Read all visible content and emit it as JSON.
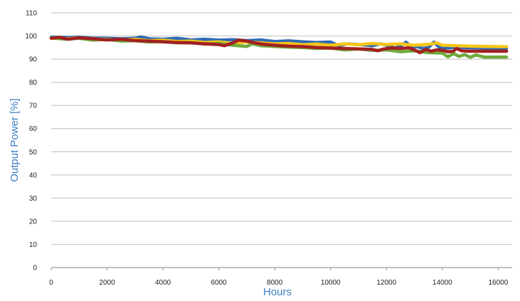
{
  "chart_data": {
    "type": "line",
    "title": "",
    "xlabel": "Hours",
    "ylabel": "Output Power [%]",
    "xlim": [
      0,
      16500
    ],
    "ylim": [
      0,
      110
    ],
    "x_ticks": [
      0,
      2000,
      4000,
      6000,
      8000,
      10000,
      12000,
      14000,
      16000
    ],
    "y_ticks": [
      0,
      10,
      20,
      30,
      40,
      50,
      60,
      70,
      80,
      90,
      100,
      110
    ],
    "grid": "horizontal",
    "legend": "none",
    "series": [
      {
        "color": "#2e6bb5",
        "points": [
          [
            0,
            99.5
          ],
          [
            500,
            99.3
          ],
          [
            1000,
            99.5
          ],
          [
            1500,
            99.0
          ],
          [
            2000,
            99.0
          ],
          [
            2500,
            98.8
          ],
          [
            3000,
            99.0
          ],
          [
            3200,
            99.6
          ],
          [
            3500,
            98.8
          ],
          [
            4000,
            98.6
          ],
          [
            4500,
            99.0
          ],
          [
            5000,
            98.3
          ],
          [
            5500,
            98.6
          ],
          [
            6000,
            98.2
          ],
          [
            6500,
            98.4
          ],
          [
            7000,
            98.0
          ],
          [
            7500,
            98.3
          ],
          [
            8000,
            97.6
          ],
          [
            8500,
            97.9
          ],
          [
            9000,
            97.5
          ],
          [
            9500,
            97.2
          ],
          [
            10000,
            97.4
          ],
          [
            10300,
            95.8
          ],
          [
            10600,
            96.6
          ],
          [
            11000,
            96.3
          ],
          [
            11500,
            95.8
          ],
          [
            11800,
            96.6
          ],
          [
            12000,
            96.0
          ],
          [
            12300,
            94.8
          ],
          [
            12500,
            95.6
          ],
          [
            12700,
            97.3
          ],
          [
            12900,
            95.2
          ],
          [
            13100,
            95.4
          ],
          [
            13300,
            94.6
          ],
          [
            13500,
            95.0
          ],
          [
            13700,
            97.3
          ],
          [
            13900,
            95.0
          ],
          [
            14200,
            94.8
          ],
          [
            14500,
            95.2
          ],
          [
            15000,
            94.9
          ],
          [
            15500,
            94.7
          ],
          [
            16000,
            94.7
          ],
          [
            16300,
            94.6
          ]
        ]
      },
      {
        "color": "#f5c518",
        "points": [
          [
            0,
            99.0
          ],
          [
            500,
            98.8
          ],
          [
            1000,
            99.2
          ],
          [
            1500,
            98.6
          ],
          [
            2000,
            98.5
          ],
          [
            2500,
            98.3
          ],
          [
            3000,
            98.5
          ],
          [
            3500,
            98.0
          ],
          [
            4000,
            98.2
          ],
          [
            4500,
            97.6
          ],
          [
            5000,
            97.8
          ],
          [
            5500,
            97.2
          ],
          [
            6000,
            97.5
          ],
          [
            6500,
            96.8
          ],
          [
            7000,
            97.4
          ],
          [
            7500,
            97.0
          ],
          [
            8000,
            96.6
          ],
          [
            8500,
            96.8
          ],
          [
            9000,
            96.2
          ],
          [
            9500,
            96.5
          ],
          [
            10000,
            96.0
          ],
          [
            10500,
            96.6
          ],
          [
            11000,
            96.2
          ],
          [
            11500,
            96.8
          ],
          [
            12000,
            96.3
          ],
          [
            12500,
            96.6
          ],
          [
            13000,
            96.0
          ],
          [
            13500,
            96.4
          ],
          [
            13800,
            97.0
          ],
          [
            14000,
            96.0
          ],
          [
            14500,
            95.8
          ],
          [
            15000,
            95.6
          ],
          [
            15500,
            95.5
          ],
          [
            16000,
            95.4
          ],
          [
            16300,
            95.4
          ]
        ]
      },
      {
        "color": "#6fab3e",
        "points": [
          [
            0,
            99.2
          ],
          [
            500,
            98.6
          ],
          [
            1000,
            99.0
          ],
          [
            1500,
            98.2
          ],
          [
            2000,
            98.5
          ],
          [
            2500,
            97.8
          ],
          [
            3000,
            98.0
          ],
          [
            3500,
            97.4
          ],
          [
            4000,
            97.6
          ],
          [
            4500,
            97.0
          ],
          [
            5000,
            97.2
          ],
          [
            5500,
            96.5
          ],
          [
            6000,
            96.8
          ],
          [
            6500,
            96.0
          ],
          [
            7000,
            95.5
          ],
          [
            7200,
            96.6
          ],
          [
            7500,
            95.8
          ],
          [
            8000,
            95.5
          ],
          [
            8500,
            95.2
          ],
          [
            9000,
            95.0
          ],
          [
            9500,
            94.6
          ],
          [
            10000,
            94.8
          ],
          [
            10500,
            94.0
          ],
          [
            11000,
            94.4
          ],
          [
            11500,
            93.8
          ],
          [
            12000,
            94.0
          ],
          [
            12500,
            93.2
          ],
          [
            13000,
            93.6
          ],
          [
            13500,
            92.8
          ],
          [
            14000,
            92.6
          ],
          [
            14200,
            91.0
          ],
          [
            14400,
            92.4
          ],
          [
            14600,
            91.2
          ],
          [
            14800,
            92.0
          ],
          [
            15000,
            90.8
          ],
          [
            15200,
            91.8
          ],
          [
            15500,
            90.9
          ],
          [
            16000,
            90.9
          ],
          [
            16300,
            90.9
          ]
        ]
      },
      {
        "color": "#a32020",
        "points": [
          [
            0,
            99.0
          ],
          [
            300,
            99.4
          ],
          [
            600,
            98.6
          ],
          [
            1000,
            99.2
          ],
          [
            1500,
            98.8
          ],
          [
            2000,
            98.3
          ],
          [
            2500,
            98.6
          ],
          [
            3000,
            98.0
          ],
          [
            3500,
            97.8
          ],
          [
            4000,
            97.5
          ],
          [
            4500,
            97.2
          ],
          [
            5000,
            97.0
          ],
          [
            5500,
            96.6
          ],
          [
            6000,
            96.3
          ],
          [
            6200,
            95.8
          ],
          [
            6500,
            97.0
          ],
          [
            6700,
            98.2
          ],
          [
            7000,
            97.8
          ],
          [
            7300,
            97.0
          ],
          [
            7600,
            96.4
          ],
          [
            8000,
            96.0
          ],
          [
            8500,
            95.6
          ],
          [
            9000,
            95.4
          ],
          [
            9500,
            95.0
          ],
          [
            10000,
            94.8
          ],
          [
            10500,
            94.6
          ],
          [
            11000,
            94.4
          ],
          [
            11500,
            94.2
          ],
          [
            11700,
            93.6
          ],
          [
            11900,
            94.4
          ],
          [
            12200,
            94.8
          ],
          [
            12500,
            94.6
          ],
          [
            12800,
            94.9
          ],
          [
            13000,
            94.0
          ],
          [
            13200,
            92.8
          ],
          [
            13400,
            94.2
          ],
          [
            13600,
            93.4
          ],
          [
            13800,
            94.0
          ],
          [
            14000,
            93.8
          ],
          [
            14200,
            93.2
          ],
          [
            14400,
            93.4
          ],
          [
            14500,
            94.6
          ],
          [
            14700,
            93.6
          ],
          [
            15000,
            93.4
          ],
          [
            15500,
            93.4
          ],
          [
            16000,
            93.4
          ],
          [
            16300,
            93.4
          ]
        ]
      }
    ]
  }
}
